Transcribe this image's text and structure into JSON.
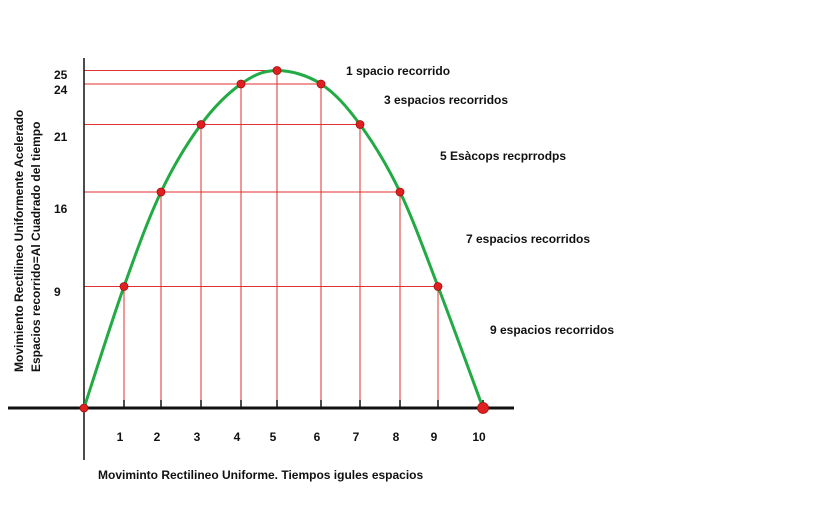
{
  "chart_data": {
    "type": "line",
    "x": [
      0,
      1,
      2,
      3,
      4,
      5,
      6,
      7,
      8,
      9,
      10
    ],
    "values": [
      0,
      9,
      16,
      21,
      24,
      25,
      24,
      21,
      16,
      9,
      0
    ],
    "x_ticks": [
      "1",
      "2",
      "3",
      "4",
      "5",
      "6",
      "7",
      "8",
      "9",
      "10"
    ],
    "y_ticks": [
      "9",
      "16",
      "21",
      "24",
      "25"
    ],
    "y_tick_values": [
      9,
      16,
      21,
      24,
      25
    ],
    "xlabel": "Movimintо Rectilineo Uniforme. Tiempos igules espacios",
    "ylabel_line1": "Movimiento Rectilineo Uniformente Acelerado",
    "ylabel_line2": "Espacios recorrido=Al Cuadrado del tiempo",
    "annotations": [
      "1 spacio recorrido",
      "3 espacios recorridos",
      "5 Esàcops recprrodps",
      "7 espacios recorridos",
      "9 espacios recorridos"
    ],
    "colors": {
      "curve": "#22aa44",
      "points": "#e02020",
      "guides": "#e03030",
      "axes": "#111111"
    },
    "grid": false
  }
}
